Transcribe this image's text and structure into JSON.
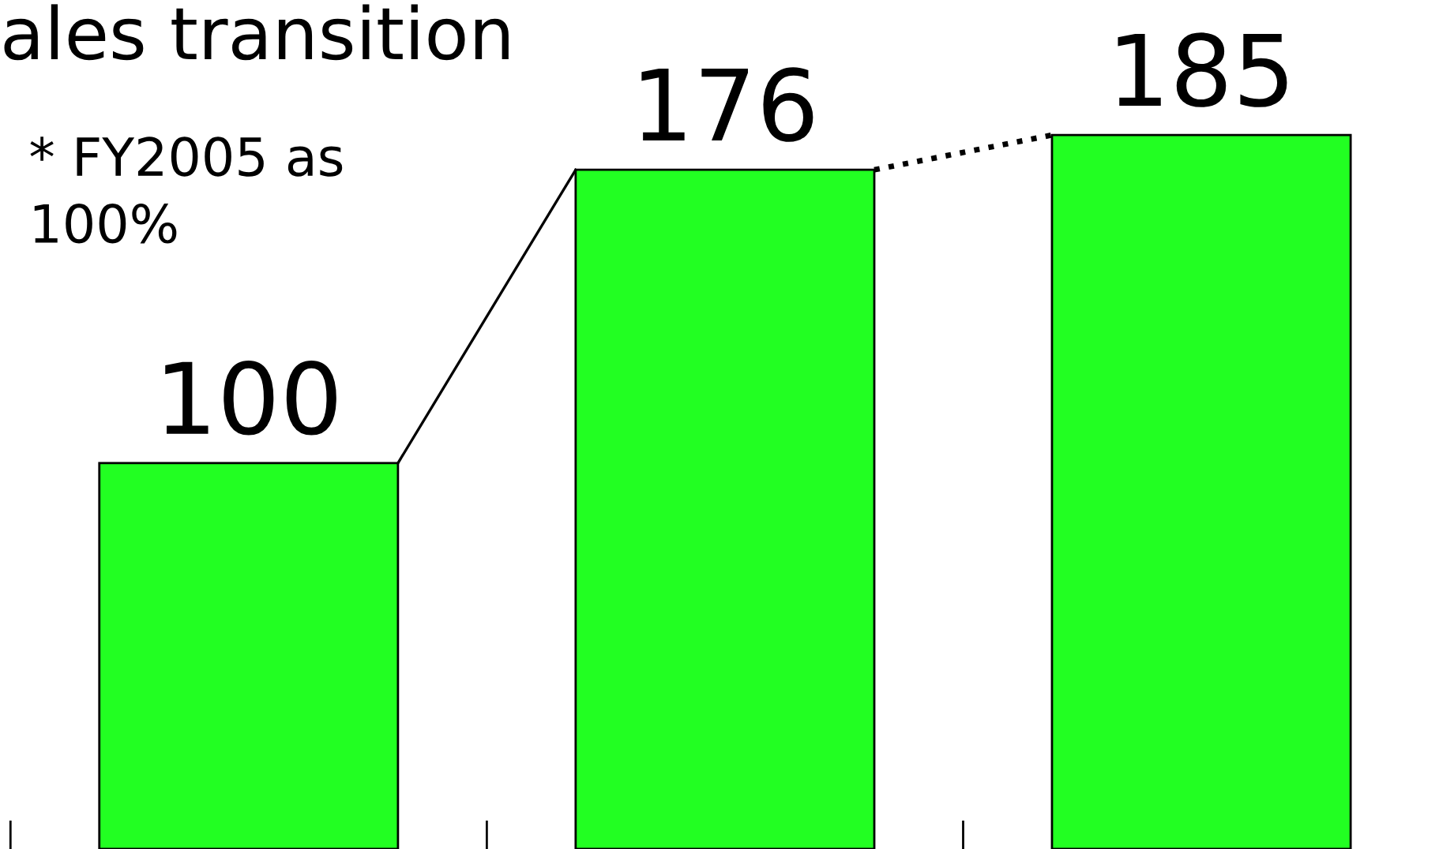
{
  "chart_data": {
    "type": "bar",
    "title": "ales transition",
    "annotations": [
      "* FY2005 as\n100%"
    ],
    "categories": [
      null,
      null,
      null
    ],
    "values": [
      100,
      176,
      185
    ],
    "color": "#22ff22",
    "ylim": [
      0,
      220
    ],
    "data_labels": true
  }
}
